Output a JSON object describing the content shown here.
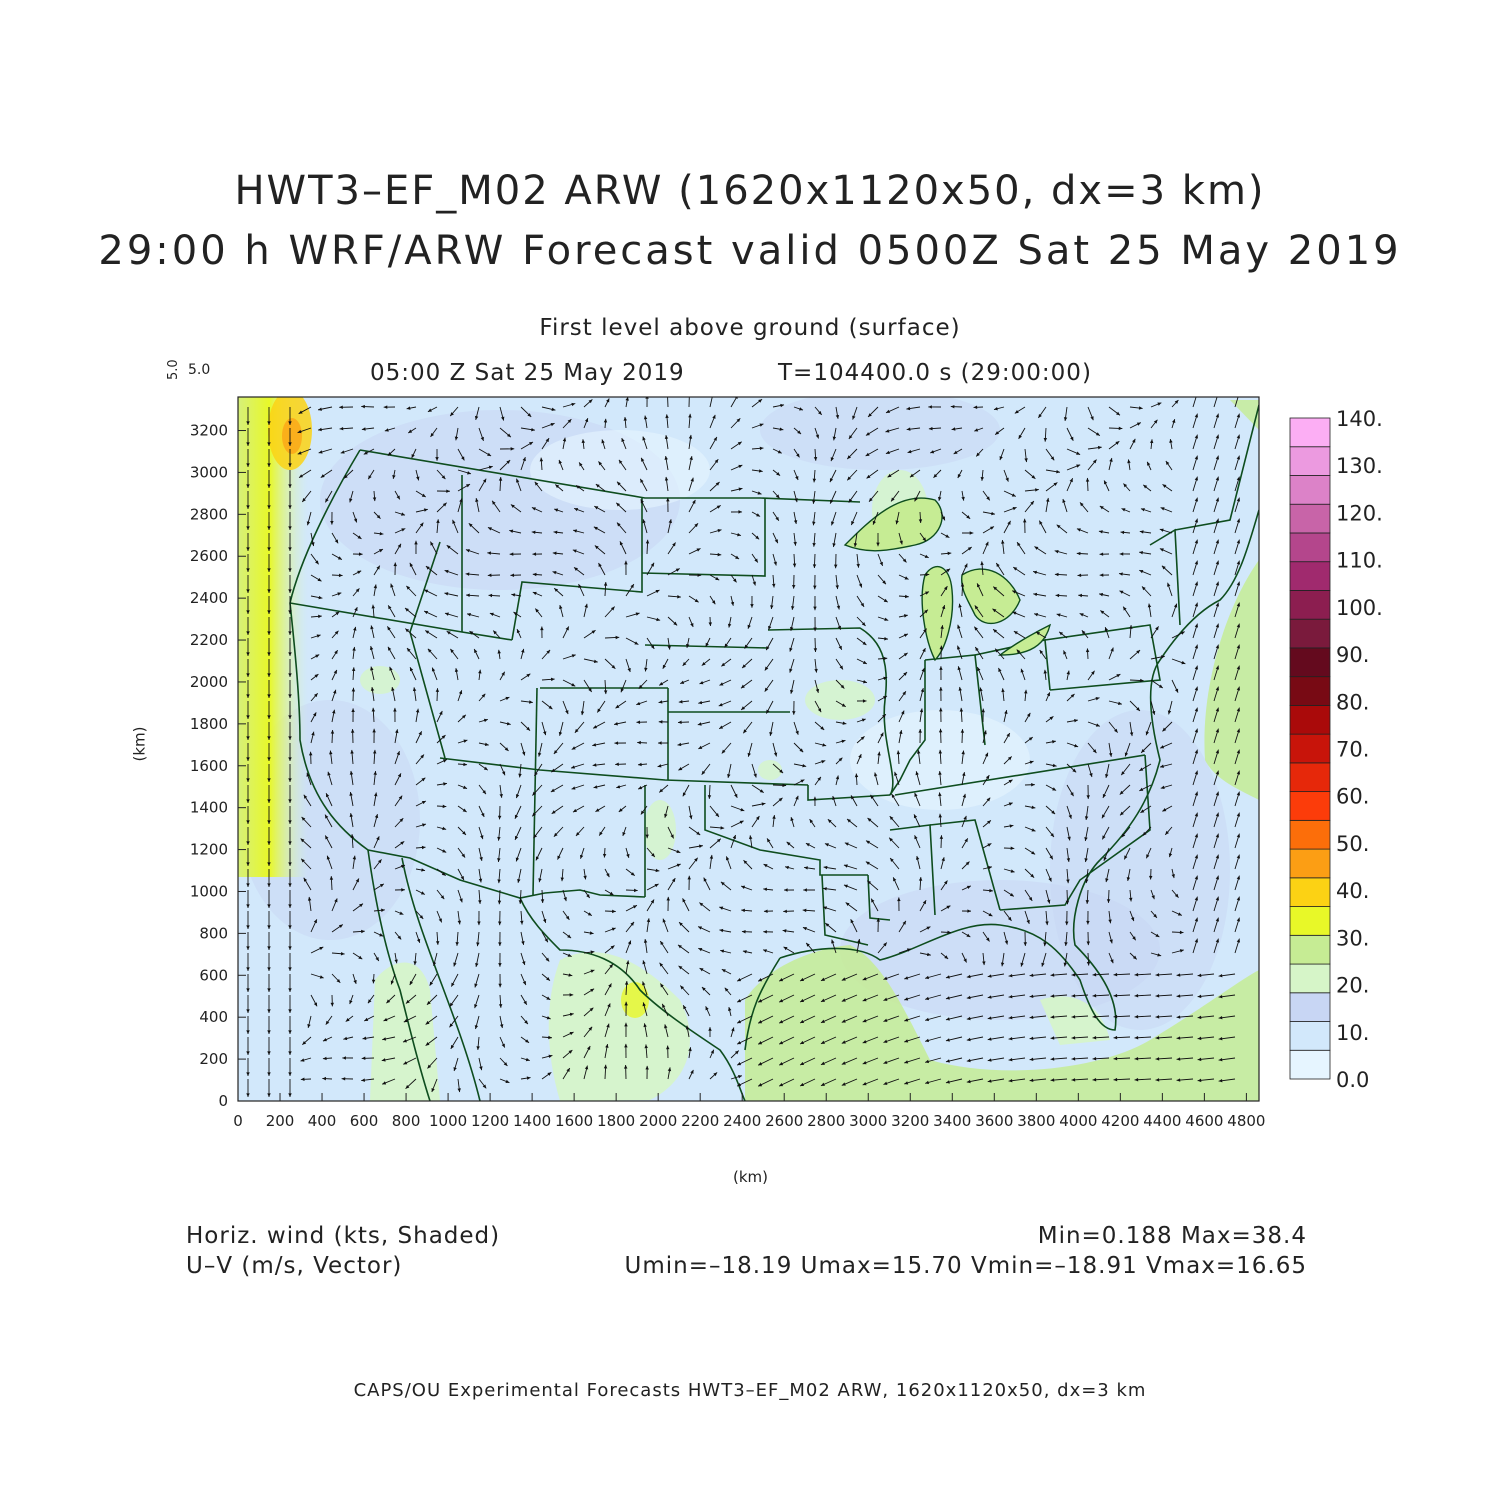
{
  "title": "HWT3–EF_M02 ARW (1620x1120x50, dx=3 km)",
  "subtitle": "29:00 h WRF/ARW Forecast valid 0500Z Sat 25 May 2019",
  "level_label": "First level above ground (surface)",
  "time_label": "05:00 Z Sat 25 May 2019",
  "time_seconds": "T=104400.0 s (29:00:00)",
  "vector_ref_vertical": "5.0",
  "vector_ref_horizontal": "5.0",
  "footer": {
    "field1": "Horiz. wind (kts, Shaded)",
    "field2": "U–V (m/s, Vector)",
    "minmax": "Min=0.188 Max=38.4",
    "uv_stats": "Umin=–18.19 Umax=15.70 Vmin=–18.91 Vmax=16.65"
  },
  "credit": "CAPS/OU Experimental Forecasts   HWT3–EF_M02 ARW, 1620x1120x50, dx=3 km",
  "chart_data": {
    "type": "heatmap",
    "xlabel": "(km)",
    "ylabel": "(km)",
    "x_ticks": [
      "0",
      "200",
      "400",
      "600",
      "800",
      "1000",
      "1200",
      "1400",
      "1600",
      "1800",
      "2000",
      "2200",
      "2400",
      "2600",
      "2800",
      "3000",
      "3200",
      "3400",
      "3600",
      "3800",
      "4000",
      "4200",
      "4400",
      "4600",
      "4800"
    ],
    "y_ticks": [
      "0",
      "200",
      "400",
      "600",
      "800",
      "1000",
      "1200",
      "1400",
      "1600",
      "1800",
      "2000",
      "2200",
      "2400",
      "2600",
      "2800",
      "3000",
      "3200"
    ],
    "xlim": [
      0,
      4860
    ],
    "ylim": [
      0,
      3360
    ],
    "colorbar": {
      "labels": [
        "0.0",
        "10.",
        "20.",
        "30.",
        "40.",
        "50.",
        "60.",
        "70.",
        "80.",
        "90.",
        "100.",
        "110.",
        "120.",
        "130.",
        "140."
      ],
      "colors": [
        "#e6f5ff",
        "#d2e8fb",
        "#c8d6f4",
        "#d6f5c8",
        "#c6ec94",
        "#e8f828",
        "#fcd214",
        "#fc9e14",
        "#fc6e0a",
        "#fc3c0a",
        "#e6280a",
        "#c8140a",
        "#aa0a0a",
        "#780a14",
        "#640a1e",
        "#7a1a3c",
        "#8c1e50",
        "#a02a6e",
        "#b4468c",
        "#c864a8",
        "#dc82c8",
        "#ec9ae0",
        "#fcaef4"
      ]
    },
    "field_extrema": {
      "min": 0.188,
      "max": 38.4,
      "umin": -18.19,
      "umax": 15.7,
      "vmin": -18.91,
      "vmax": 16.65
    }
  }
}
